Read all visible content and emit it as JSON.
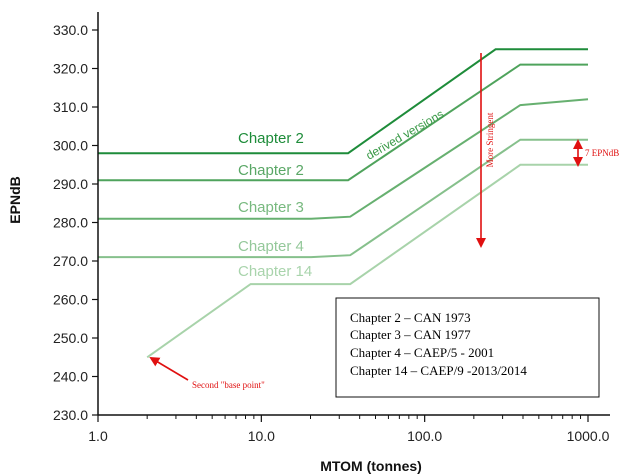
{
  "chart_data": {
    "type": "line",
    "title": "",
    "xlabel": "MTOM (tonnes)",
    "ylabel": "EPNdB",
    "xscale": "log",
    "xlim": [
      1.0,
      1000.0
    ],
    "ylim": [
      230.0,
      330.0
    ],
    "x_tick_labels": [
      "1.0",
      "10.0",
      "100.0",
      "1000.0"
    ],
    "y_tick_labels": [
      "230.0",
      "240.0",
      "250.0",
      "260.0",
      "270.0",
      "280.0",
      "290.0",
      "300.0",
      "310.0",
      "320.0",
      "330.0"
    ],
    "grid": false,
    "series": [
      {
        "name": "Chapter 2",
        "color": "#1e8c3a",
        "x": [
          1.0,
          34,
          272,
          1000
        ],
        "y": [
          298,
          298,
          325,
          325
        ]
      },
      {
        "name": "Chapter 2",
        "color": "#4fa35c",
        "x": [
          1.0,
          34,
          385,
          1000
        ],
        "y": [
          291,
          291,
          321,
          321
        ]
      },
      {
        "name": "Chapter 3",
        "color": "#67b070",
        "x": [
          1.0,
          20.2,
          35,
          385,
          1000
        ],
        "y": [
          281,
          281,
          281.5,
          310.5,
          312
        ]
      },
      {
        "name": "Chapter 4",
        "color": "#86c08c",
        "x": [
          1.0,
          20.2,
          35,
          385,
          1000
        ],
        "y": [
          271,
          271,
          271.5,
          301.5,
          301.5
        ]
      },
      {
        "name": "Chapter 14",
        "color": "#a8d3aa",
        "x": [
          2.0,
          8.6,
          35,
          385,
          1000
        ],
        "y": [
          245,
          264,
          264,
          295,
          295
        ]
      }
    ],
    "series_labels": [
      "Chapter 2",
      "Chapter 2",
      "Chapter 3",
      "Chapter 4",
      "Chapter 14"
    ],
    "annotations": {
      "derived_versions": "derived versions",
      "more_stringent": "More Stringent",
      "epndb_gap": "7 EPNdB",
      "base_point": "Second \"base point\""
    },
    "legend_box": [
      "Chapter 2 – CAN 1973",
      "Chapter 3 – CAN 1977",
      "Chapter 4 – CAEP/5 - 2001",
      "Chapter 14 – CAEP/9 -2013/2014"
    ],
    "colors": {
      "axis": "#111111",
      "annotation_red": "#e01010"
    }
  }
}
